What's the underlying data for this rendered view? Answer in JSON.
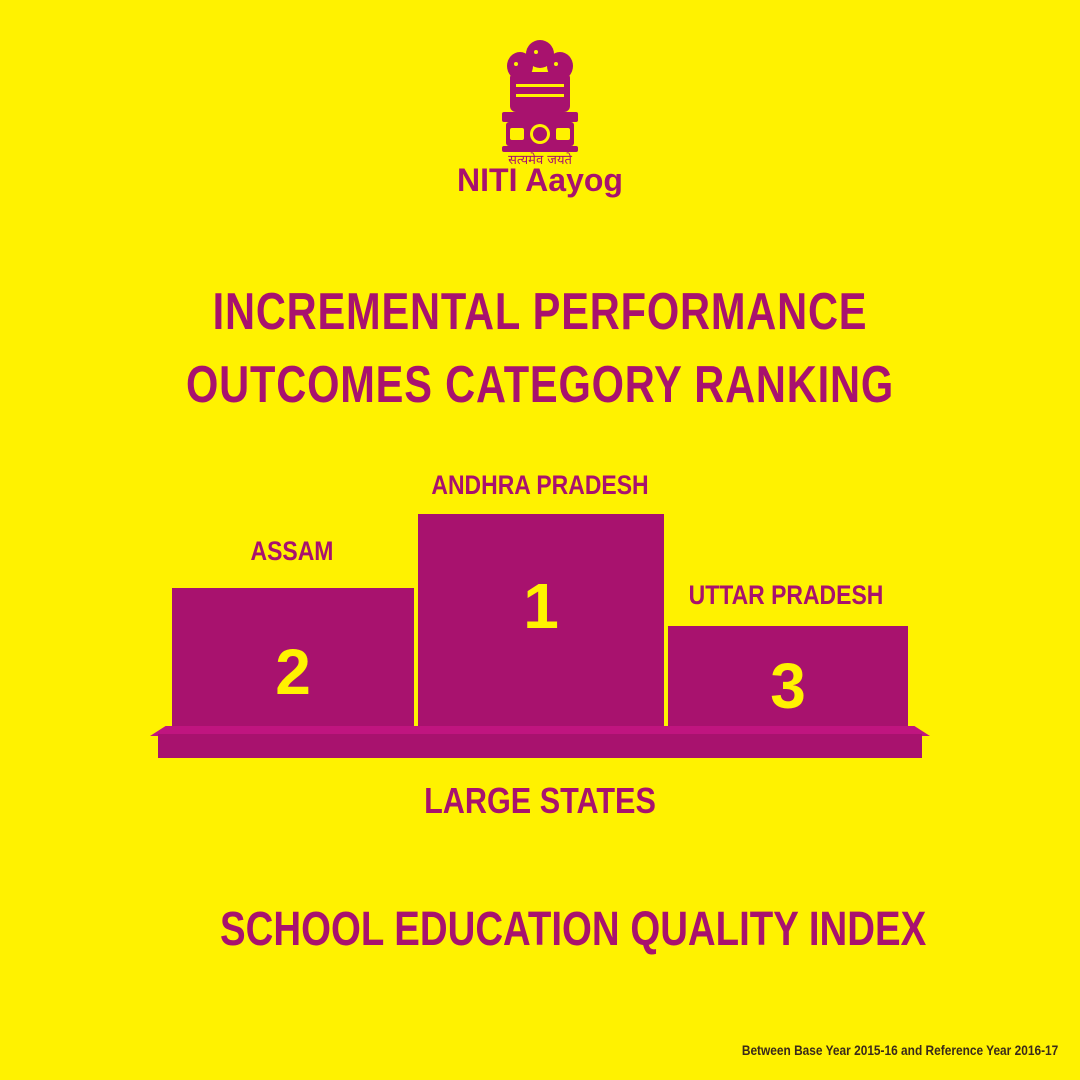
{
  "emblem": {
    "icon": "ashoka-emblem-icon",
    "motto": "सत्यमेव जयते"
  },
  "org_name": "NITI Aayog",
  "headline": {
    "line1": "INCREMENTAL PERFORMANCE",
    "line2": "OUTCOMES CATEGORY RANKING"
  },
  "podium": [
    {
      "rank": "1",
      "state": "ANDHRA PRADESH"
    },
    {
      "rank": "2",
      "state": "ASSAM"
    },
    {
      "rank": "3",
      "state": "UTTAR PRADESH"
    }
  ],
  "category": "LARGE STATES",
  "index_title": "SCHOOL EDUCATION QUALITY INDEX",
  "footnote": "Between Base Year 2015-16 and Reference Year 2016-17",
  "colors": {
    "background": "#FFF200",
    "primary": "#A8126E",
    "rank_text": "#FFF200"
  }
}
